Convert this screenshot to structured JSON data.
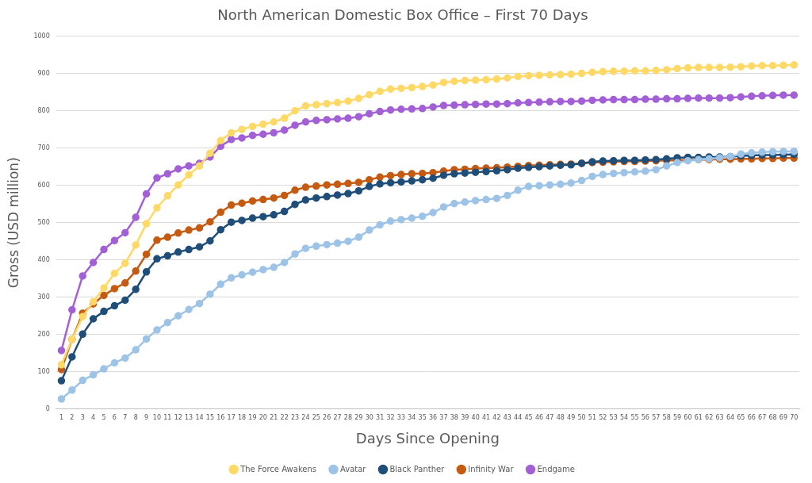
{
  "chart_data": {
    "type": "line",
    "title": "North American Domestic Box Office – First 70 Days",
    "x_label": "Days Since Opening",
    "y_label": "Gross (USD million)",
    "categories": [
      "1",
      "2",
      "3",
      "4",
      "5",
      "6",
      "7",
      "8",
      "9",
      "10",
      "11",
      "12",
      "13",
      "14",
      "15",
      "16",
      "17",
      "18",
      "19",
      "20",
      "21",
      "22",
      "23",
      "24",
      "25",
      "26",
      "27",
      "28",
      "29",
      "30",
      "31",
      "32",
      "33",
      "34",
      "35",
      "36",
      "37",
      "38",
      "39",
      "40",
      "41",
      "42",
      "43",
      "44",
      "45",
      "46",
      "47",
      "48",
      "49",
      "50",
      "51",
      "52",
      "53",
      "54",
      "55",
      "56",
      "57",
      "58",
      "59",
      "60",
      "61",
      "62",
      "63",
      "64",
      "65",
      "66",
      "67",
      "68",
      "69",
      "70"
    ],
    "ylim": [
      0,
      1000
    ],
    "yticks": [
      0,
      100,
      200,
      300,
      400,
      500,
      600,
      700,
      800,
      900,
      1000
    ],
    "grid": "y",
    "legend": "bottom",
    "marker": "circle",
    "series": [
      {
        "name": "The Force Awakens",
        "color": "#FFD966",
        "values": [
          119,
          187,
          248,
          288,
          325,
          364,
          391,
          440,
          497,
          540,
          572,
          601,
          628,
          652,
          686,
          720,
          741,
          750,
          758,
          764,
          770,
          780,
          800,
          813,
          816,
          819,
          822,
          826,
          833,
          843,
          852,
          858,
          860,
          862,
          865,
          869,
          876,
          879,
          881,
          882,
          883,
          885,
          888,
          892,
          894,
          895,
          896,
          897,
          898,
          900,
          903,
          905,
          906,
          906,
          907,
          907,
          908,
          910,
          913,
          915,
          916,
          916,
          916,
          917,
          918,
          920,
          921,
          921,
          922,
          923
        ]
      },
      {
        "name": "Avatar",
        "color": "#9DC3E6",
        "values": [
          27,
          51,
          77,
          92,
          108,
          124,
          137,
          159,
          188,
          212,
          232,
          250,
          267,
          283,
          308,
          335,
          352,
          360,
          367,
          374,
          380,
          393,
          416,
          431,
          437,
          441,
          445,
          450,
          461,
          480,
          494,
          504,
          508,
          512,
          517,
          527,
          542,
          551,
          555,
          559,
          562,
          565,
          573,
          587,
          597,
          599,
          601,
          603,
          606,
          613,
          624,
          629,
          632,
          634,
          636,
          638,
          642,
          652,
          661,
          666,
          669,
          671,
          674,
          677,
          684,
          687,
          689,
          690,
          691,
          691
        ]
      },
      {
        "name": "Black Panther",
        "color": "#1F4E79",
        "values": [
          76,
          140,
          201,
          242,
          262,
          277,
          292,
          321,
          368,
          403,
          411,
          421,
          428,
          435,
          451,
          481,
          501,
          506,
          512,
          516,
          521,
          530,
          549,
          561,
          566,
          570,
          574,
          578,
          585,
          597,
          604,
          607,
          609,
          612,
          615,
          619,
          627,
          631,
          633,
          635,
          637,
          639,
          642,
          646,
          648,
          650,
          652,
          654,
          655,
          659,
          663,
          665,
          666,
          667,
          667,
          668,
          669,
          671,
          674,
          675,
          675,
          676,
          676,
          677,
          679,
          680,
          681,
          681,
          682,
          683
        ]
      },
      {
        "name": "Infinity War",
        "color": "#C55A11",
        "values": [
          106,
          187,
          257,
          282,
          305,
          323,
          338,
          370,
          415,
          453,
          461,
          472,
          480,
          486,
          502,
          528,
          547,
          552,
          558,
          562,
          566,
          573,
          587,
          595,
          598,
          601,
          603,
          605,
          608,
          615,
          622,
          626,
          629,
          631,
          632,
          634,
          638,
          642,
          643,
          645,
          646,
          647,
          649,
          651,
          653,
          654,
          655,
          656,
          657,
          659,
          661,
          662,
          663,
          664,
          664,
          665,
          666,
          667,
          667,
          668,
          669,
          669,
          670,
          670,
          671,
          671,
          672,
          672,
          673,
          673
        ]
      },
      {
        "name": "Endgame",
        "color": "#A35FD6",
        "values": [
          157,
          266,
          357,
          393,
          428,
          452,
          473,
          514,
          577,
          620,
          631,
          644,
          652,
          659,
          676,
          705,
          723,
          727,
          734,
          737,
          741,
          748,
          761,
          770,
          774,
          776,
          778,
          780,
          784,
          792,
          798,
          802,
          804,
          805,
          806,
          810,
          814,
          815,
          816,
          817,
          818,
          818,
          819,
          821,
          822,
          823,
          824,
          825,
          825,
          826,
          828,
          829,
          830,
          830,
          830,
          831,
          831,
          832,
          832,
          833,
          834,
          834,
          834,
          835,
          837,
          839,
          840,
          841,
          842,
          842
        ]
      }
    ]
  }
}
